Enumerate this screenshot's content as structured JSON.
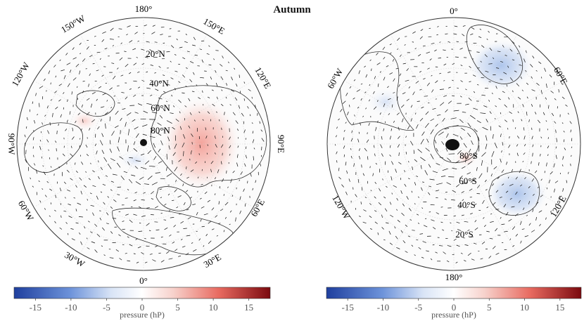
{
  "title": "Autumn",
  "colors": {
    "blue_strong": "#2a4fb0",
    "blue_mid": "#8fb0e6",
    "white": "#ffffff",
    "red_mid": "#f2a49a",
    "red_strong": "#8a0d12",
    "land_outline": "#333333",
    "grid": "#cfcfcf",
    "arrow": "#111111",
    "warm_anomaly": "#f5b8b0",
    "cool_anomaly": "#b9cdee"
  },
  "north_map": {
    "lon_labels": [
      "180°",
      "150°E",
      "120°E",
      "90°E",
      "60°E",
      "30°E",
      "0°",
      "30°W",
      "60°W",
      "90°W",
      "120°W",
      "150°W"
    ],
    "lat_labels": [
      "20°N",
      "40°N",
      "60°N",
      "80°N"
    ]
  },
  "south_map": {
    "lon_labels": [
      "0°",
      "60°E",
      "120°E",
      "180°",
      "120°W",
      "60°W"
    ],
    "lat_labels": [
      "20°S",
      "40°S",
      "60°S",
      "80°S"
    ]
  },
  "colorbar_left": {
    "label": "pressure (hP)",
    "ticks": [
      "-15",
      "-10",
      "-5",
      "0",
      "5",
      "10",
      "15"
    ],
    "range": [
      -18,
      18
    ]
  },
  "colorbar_right": {
    "label": "pressure (hP)",
    "ticks": [
      "-15",
      "-10",
      "-5",
      "0",
      "5",
      "10",
      "15"
    ],
    "range": [
      -18,
      18
    ]
  }
}
